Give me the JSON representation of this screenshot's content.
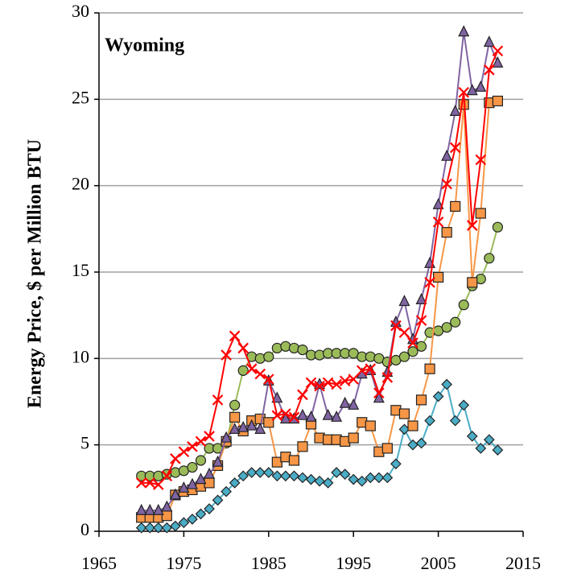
{
  "chart_data": {
    "type": "line",
    "ylabel": "Energy Price, $ per Million BTU",
    "annotation": "Wyoming",
    "x": [
      1970,
      1971,
      1972,
      1973,
      1974,
      1975,
      1976,
      1977,
      1978,
      1979,
      1980,
      1981,
      1982,
      1983,
      1984,
      1985,
      1986,
      1987,
      1988,
      1989,
      1990,
      1991,
      1992,
      1993,
      1994,
      1995,
      1996,
      1997,
      1998,
      1999,
      2000,
      2001,
      2002,
      2003,
      2004,
      2005,
      2006,
      2007,
      2008,
      2009,
      2010,
      2011,
      2012
    ],
    "series": [
      {
        "color": "#4bacc6",
        "marker": "diamond",
        "values": [
          0.2,
          0.2,
          0.2,
          0.2,
          0.3,
          0.5,
          0.7,
          1.0,
          1.3,
          1.8,
          2.3,
          2.8,
          3.2,
          3.4,
          3.4,
          3.4,
          3.2,
          3.2,
          3.2,
          3.1,
          3.0,
          2.9,
          2.8,
          3.4,
          3.3,
          3.0,
          2.9,
          3.1,
          3.1,
          3.1,
          3.9,
          5.9,
          5.0,
          5.1,
          6.4,
          7.8,
          8.5,
          6.4,
          7.3,
          5.5,
          4.8,
          5.3,
          4.7
        ]
      },
      {
        "color": "#9bbb59",
        "marker": "circle",
        "values": [
          3.2,
          3.2,
          3.2,
          3.3,
          3.4,
          3.5,
          3.7,
          4.1,
          4.8,
          4.8,
          5.1,
          7.3,
          9.3,
          10.1,
          10.0,
          10.1,
          10.6,
          10.7,
          10.6,
          10.5,
          10.2,
          10.2,
          10.3,
          10.3,
          10.3,
          10.3,
          10.1,
          10.1,
          10.0,
          9.8,
          9.9,
          10.1,
          10.4,
          10.7,
          11.5,
          11.6,
          11.8,
          12.1,
          13.1,
          14.2,
          14.6,
          15.8,
          17.6
        ]
      },
      {
        "color": "#f79646",
        "marker": "square",
        "values": [
          0.8,
          0.8,
          0.8,
          0.9,
          2.1,
          2.3,
          2.4,
          2.6,
          2.8,
          3.8,
          5.2,
          6.6,
          5.8,
          6.4,
          6.5,
          6.3,
          4.0,
          4.3,
          4.1,
          4.9,
          6.2,
          5.4,
          5.3,
          5.3,
          5.2,
          5.4,
          6.3,
          6.1,
          4.6,
          4.8,
          7.0,
          6.8,
          6.1,
          7.6,
          9.4,
          14.7,
          17.3,
          18.8,
          24.7,
          14.4,
          18.4,
          24.8,
          24.9
        ]
      },
      {
        "color": "#8064a2",
        "marker": "triangle",
        "values": [
          1.2,
          1.2,
          1.2,
          1.4,
          2.1,
          2.5,
          2.7,
          3.0,
          3.3,
          4.0,
          5.4,
          5.9,
          6.0,
          6.1,
          5.9,
          8.7,
          7.7,
          6.5,
          6.5,
          6.7,
          6.6,
          8.5,
          6.7,
          6.6,
          7.4,
          7.3,
          9.1,
          9.3,
          7.7,
          9.2,
          12.1,
          13.3,
          11.1,
          13.4,
          15.5,
          18.9,
          21.7,
          24.3,
          28.9,
          25.5,
          25.7,
          28.3,
          27.1
        ]
      },
      {
        "color": "#ff0000",
        "marker": "x",
        "values": [
          2.8,
          2.8,
          2.7,
          3.2,
          4.2,
          4.6,
          4.9,
          5.2,
          5.5,
          7.6,
          10.2,
          11.3,
          10.6,
          9.4,
          9.1,
          8.8,
          6.7,
          6.8,
          6.6,
          7.9,
          8.6,
          8.4,
          8.6,
          8.5,
          8.7,
          8.8,
          9.3,
          9.4,
          8.0,
          8.9,
          11.9,
          11.5,
          10.9,
          12.2,
          14.4,
          17.9,
          20.1,
          22.2,
          25.4,
          17.7,
          21.5,
          26.7,
          27.8
        ]
      }
    ],
    "xlim": [
      1965,
      2015
    ],
    "xticks": [
      1965,
      1975,
      1985,
      1995,
      2005,
      2015
    ],
    "ylim": [
      0,
      30
    ],
    "yticks": [
      0,
      5,
      10,
      15,
      20,
      25,
      30
    ],
    "grid": true
  }
}
